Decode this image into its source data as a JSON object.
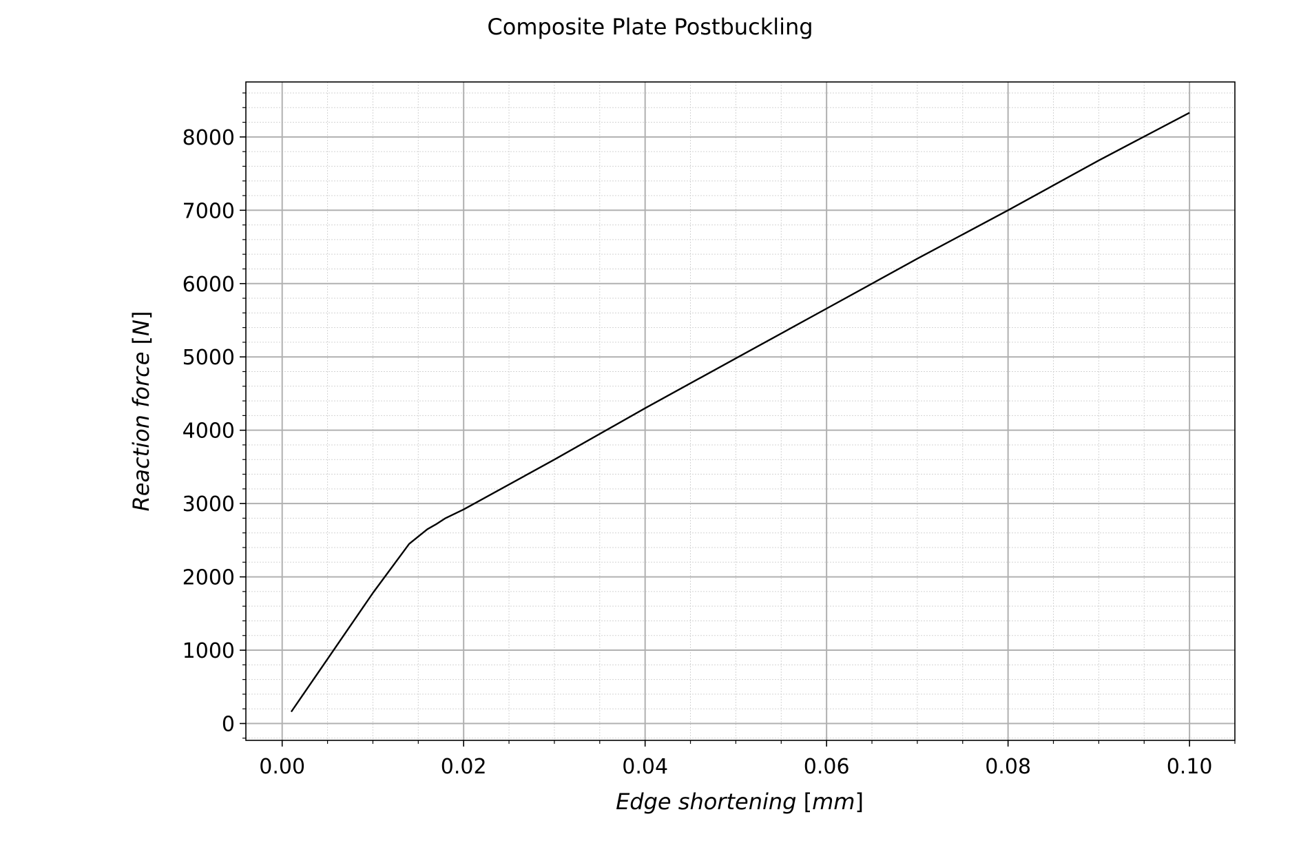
{
  "chart_data": {
    "type": "line",
    "title": "Composite Plate Postbuckling",
    "xlabel": {
      "italic": "Edge shortening ",
      "plain_open": "[",
      "italic_unit": "mm",
      "plain_close": "]"
    },
    "ylabel": {
      "italic": "Reaction force ",
      "plain_open": "[",
      "italic_unit": "N",
      "plain_close": "]"
    },
    "xlim": [
      -0.004,
      0.105
    ],
    "ylim": [
      -230,
      8750
    ],
    "x_ticks": [
      0.0,
      0.02,
      0.04,
      0.06,
      0.08,
      0.1
    ],
    "x_tick_labels": [
      "0.00",
      "0.02",
      "0.04",
      "0.06",
      "0.08",
      "0.10"
    ],
    "y_ticks": [
      0,
      1000,
      2000,
      3000,
      4000,
      5000,
      6000,
      7000,
      8000
    ],
    "y_tick_labels": [
      "0",
      "1000",
      "2000",
      "3000",
      "4000",
      "5000",
      "6000",
      "7000",
      "8000"
    ],
    "x_minor_step": 0.005,
    "y_minor_step": 200,
    "grid": true,
    "minor_grid": true,
    "line_color": "#000000",
    "grid_color": "#b0b0b0",
    "series": [
      {
        "x": [
          0.001,
          0.005,
          0.01,
          0.014,
          0.016,
          0.017,
          0.018,
          0.02,
          0.03,
          0.04,
          0.05,
          0.06,
          0.07,
          0.08,
          0.09,
          0.1
        ],
        "y": [
          160,
          880,
          1780,
          2450,
          2650,
          2720,
          2800,
          2920,
          3600,
          4300,
          4980,
          5660,
          6340,
          7000,
          7680,
          8330
        ]
      }
    ]
  }
}
